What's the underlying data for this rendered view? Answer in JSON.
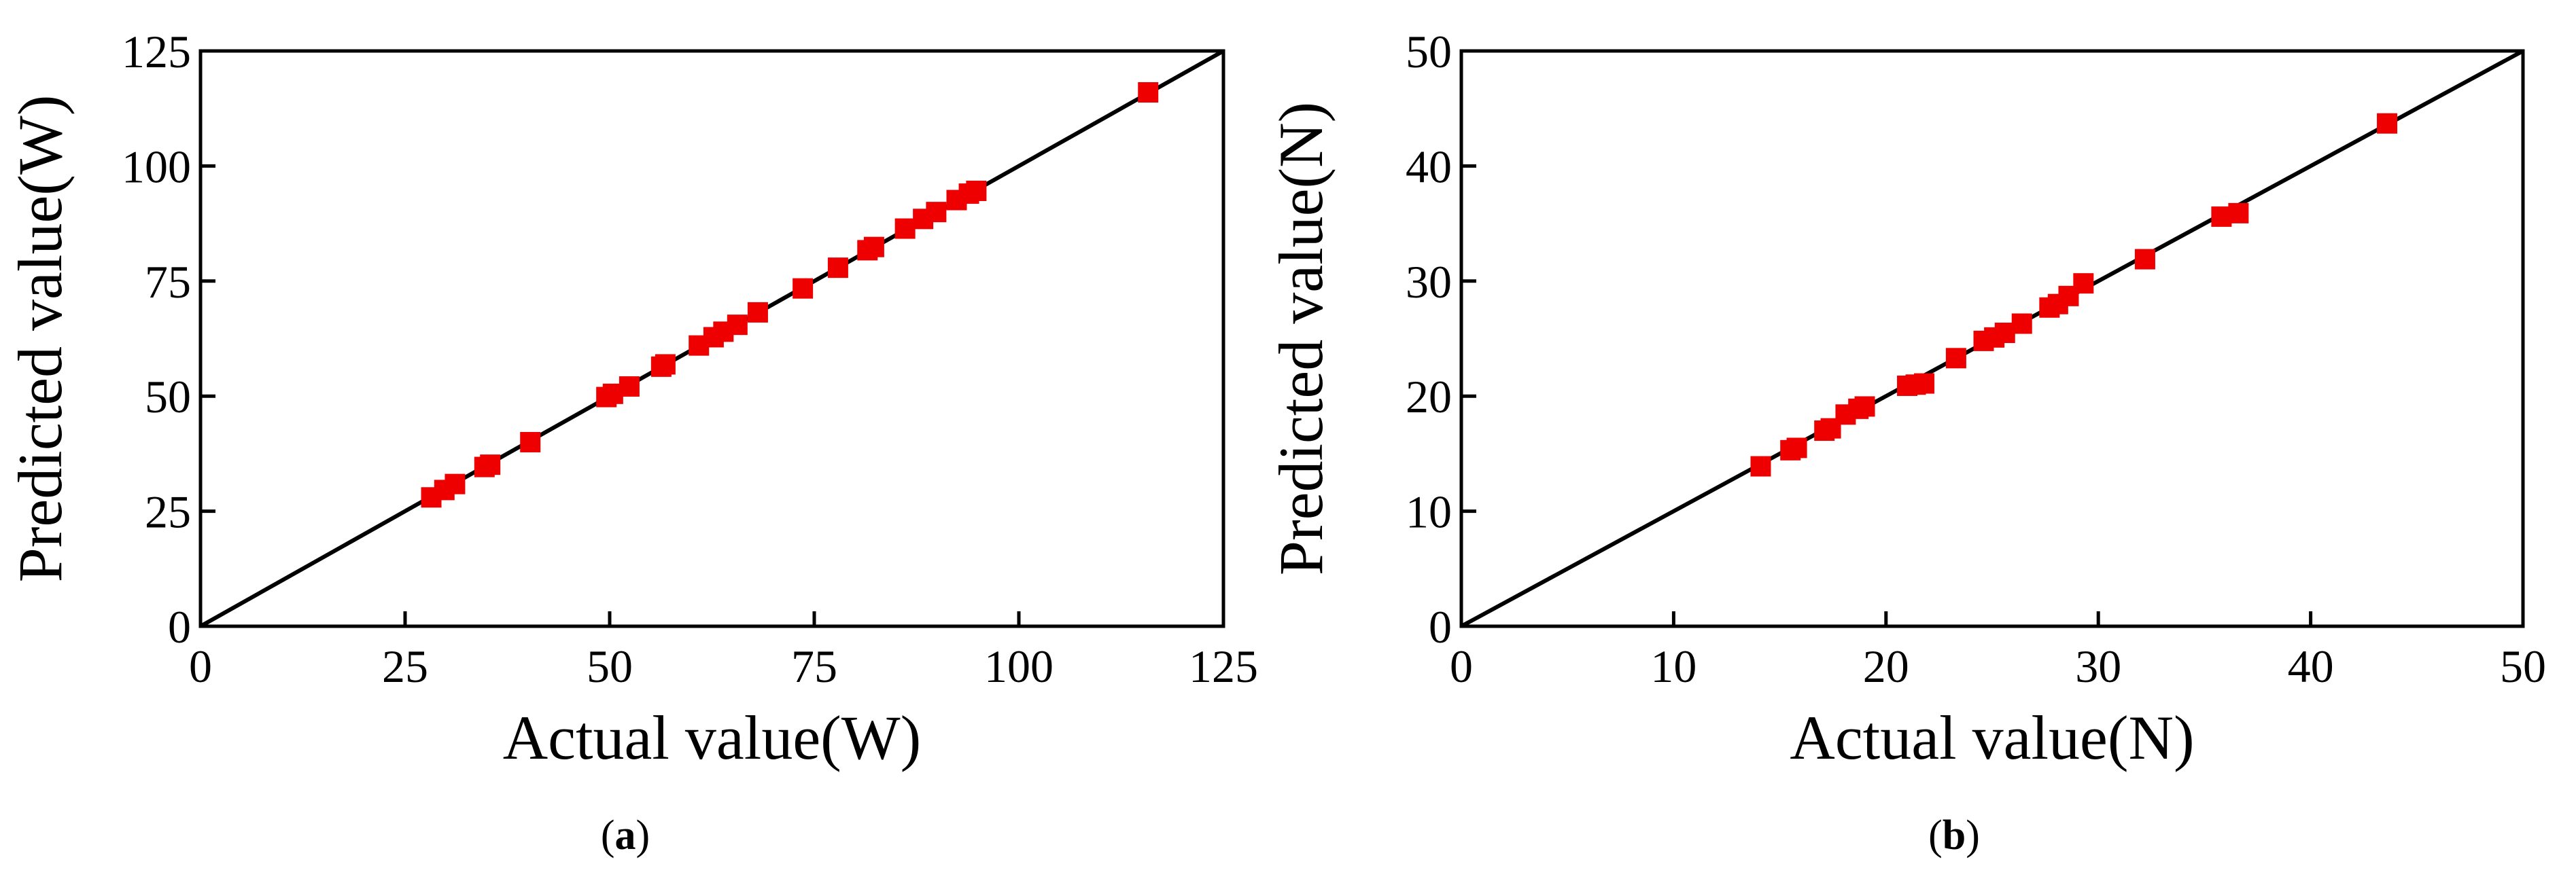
{
  "chart_data": [
    {
      "type": "scatter",
      "xlabel": "Actual value(W)",
      "ylabel": "Predicted value(W)",
      "xlim": [
        0,
        125
      ],
      "ylim": [
        0,
        125
      ],
      "xticks": [
        0,
        25,
        50,
        75,
        100,
        125
      ],
      "yticks": [
        0,
        25,
        50,
        75,
        100,
        125
      ],
      "grid": false,
      "reference_line": {
        "from": [
          0,
          0
        ],
        "to": [
          125,
          125
        ]
      },
      "panel_label": "a",
      "colors": {
        "points": "#ee0000",
        "line": "#000000"
      },
      "series": [
        {
          "x": [
            28.2,
            29.8,
            31.1,
            34.7,
            35.4,
            40.3,
            49.6,
            50.4,
            52.4,
            56.3,
            56.8,
            60.9,
            62.7,
            63.9,
            65.6,
            68.1,
            73.6,
            77.9,
            81.5,
            82.3,
            86.1,
            88.3,
            89.9,
            92.4,
            93.9,
            94.8,
            115.8
          ],
          "y": [
            28.0,
            29.6,
            30.9,
            34.6,
            35.1,
            40.0,
            49.8,
            50.5,
            52.1,
            56.4,
            56.9,
            61.0,
            62.8,
            64.0,
            65.5,
            68.2,
            73.4,
            77.9,
            81.7,
            82.4,
            86.4,
            88.5,
            90.0,
            92.6,
            94.0,
            94.6,
            116.0
          ]
        }
      ]
    },
    {
      "type": "scatter",
      "xlabel": "Actual value(N)",
      "ylabel": "Predicted value(N)",
      "xlim": [
        0,
        50
      ],
      "ylim": [
        0,
        50
      ],
      "xticks": [
        0,
        10,
        20,
        30,
        40,
        50
      ],
      "yticks": [
        0,
        10,
        20,
        30,
        40,
        50
      ],
      "grid": false,
      "reference_line": {
        "from": [
          0,
          0
        ],
        "to": [
          50,
          50
        ]
      },
      "panel_label": "b",
      "colors": {
        "points": "#ee0000",
        "line": "#000000"
      },
      "series": [
        {
          "x": [
            14.1,
            15.5,
            15.8,
            17.1,
            17.4,
            18.1,
            18.7,
            19.0,
            21.0,
            21.4,
            21.8,
            23.3,
            24.6,
            25.1,
            25.6,
            26.4,
            27.7,
            28.1,
            28.6,
            29.3,
            32.2,
            35.8,
            36.6,
            43.6
          ],
          "y": [
            13.9,
            15.3,
            15.5,
            17.0,
            17.2,
            18.4,
            18.9,
            19.1,
            20.9,
            21.0,
            21.1,
            23.3,
            24.8,
            25.1,
            25.5,
            26.3,
            27.7,
            28.0,
            28.7,
            29.8,
            31.9,
            35.6,
            35.9,
            43.7
          ]
        }
      ]
    }
  ]
}
